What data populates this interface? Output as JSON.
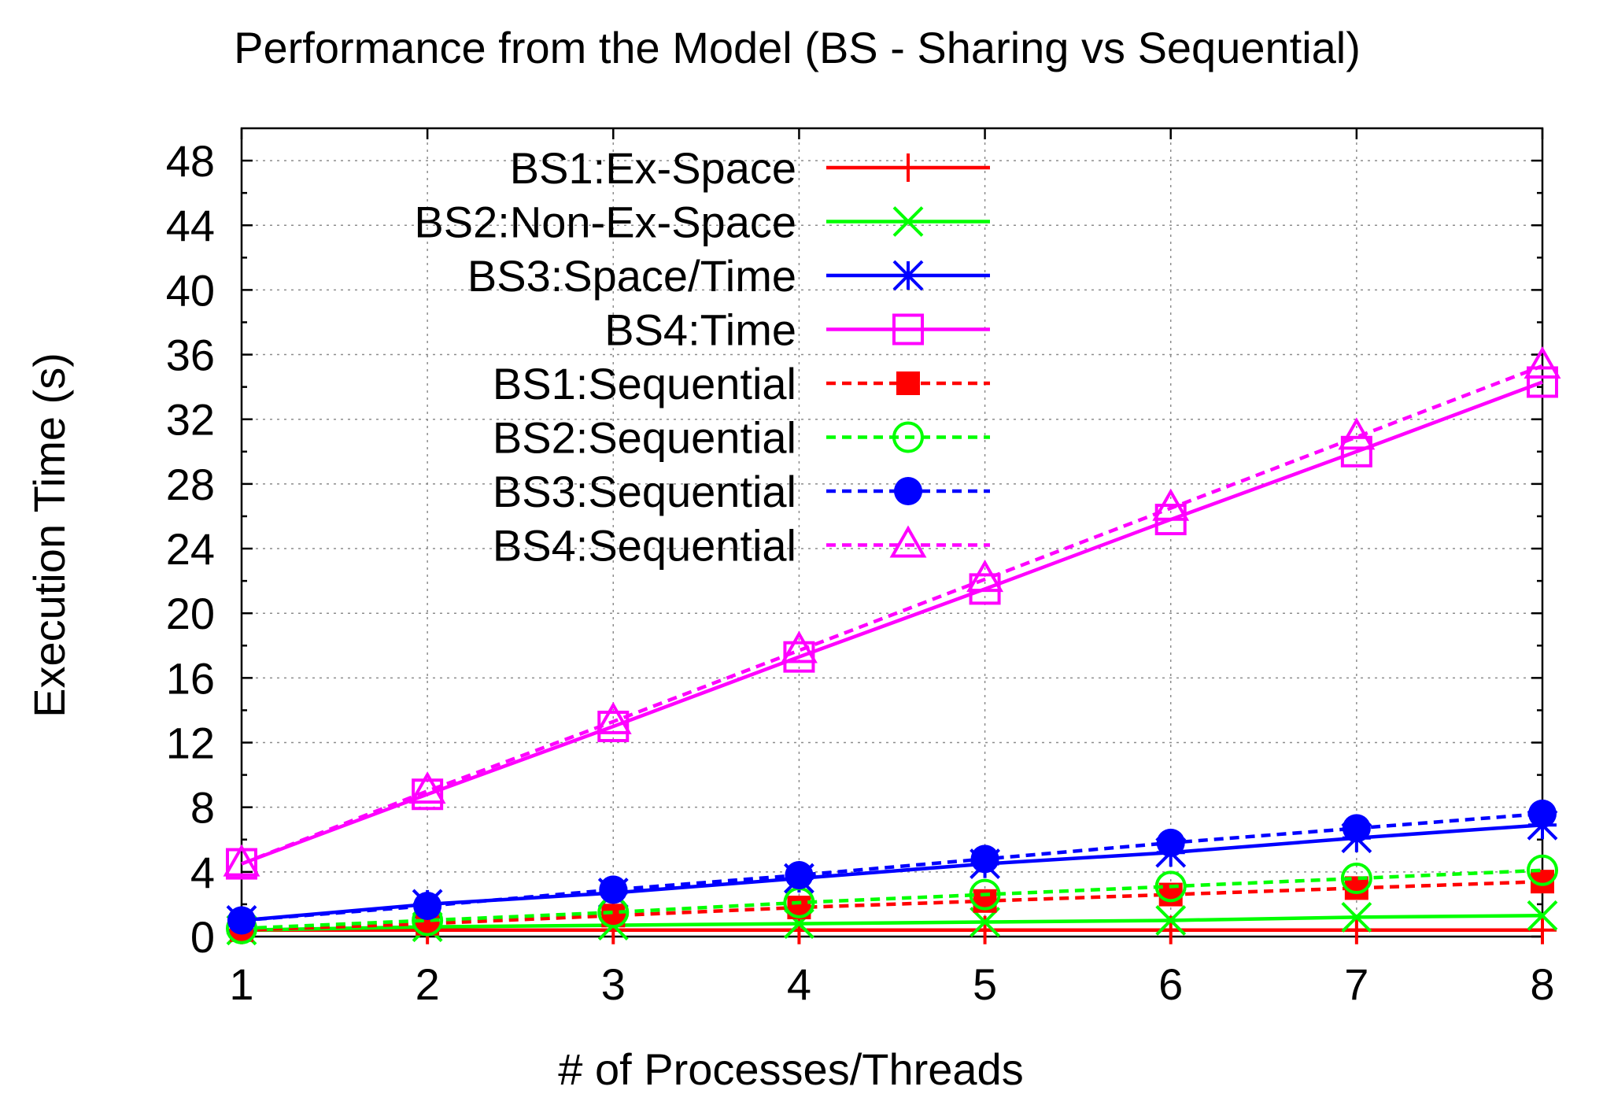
{
  "chart_data": {
    "type": "line",
    "title": "Performance from the Model (BS - Sharing vs Sequential)",
    "xlabel": "# of Processes/Threads",
    "ylabel": "Execution Time (s)",
    "x": [
      1,
      2,
      3,
      4,
      5,
      6,
      7,
      8
    ],
    "xlim": [
      1,
      8
    ],
    "ylim": [
      0,
      50
    ],
    "xticks": [
      "1",
      "2",
      "3",
      "4",
      "5",
      "6",
      "7",
      "8"
    ],
    "yticks": [
      "0",
      "4",
      "8",
      "12",
      "16",
      "20",
      "24",
      "28",
      "32",
      "36",
      "40",
      "44",
      "48"
    ],
    "grid": true,
    "legend_position": "top-left",
    "series": [
      {
        "name": "BS1:Ex-Space",
        "color": "#ff0000",
        "line": "solid",
        "marker": "plus",
        "values": [
          0.4,
          0.4,
          0.4,
          0.4,
          0.4,
          0.4,
          0.4,
          0.4
        ]
      },
      {
        "name": "BS2:Non-Ex-Space",
        "color": "#00ff00",
        "line": "solid",
        "marker": "cross",
        "values": [
          0.4,
          0.6,
          0.7,
          0.8,
          0.9,
          1.0,
          1.2,
          1.3
        ]
      },
      {
        "name": "BS3:Space/Time",
        "color": "#0000ff",
        "line": "solid",
        "marker": "star",
        "values": [
          1.0,
          2.0,
          2.7,
          3.6,
          4.5,
          5.2,
          6.1,
          6.9
        ]
      },
      {
        "name": "BS4:Time",
        "color": "#ff00ff",
        "line": "solid",
        "marker": "square-open",
        "values": [
          4.5,
          8.8,
          13.0,
          17.3,
          21.5,
          25.8,
          30.0,
          34.3
        ]
      },
      {
        "name": "BS1:Sequential",
        "color": "#ff0000",
        "line": "dashed",
        "marker": "square-filled",
        "values": [
          0.4,
          0.8,
          1.3,
          1.8,
          2.2,
          2.6,
          3.0,
          3.4
        ]
      },
      {
        "name": "BS2:Sequential",
        "color": "#00ff00",
        "line": "dashed",
        "marker": "circle-open",
        "values": [
          0.5,
          1.0,
          1.5,
          2.1,
          2.6,
          3.1,
          3.6,
          4.1
        ]
      },
      {
        "name": "BS3:Sequential",
        "color": "#0000ff",
        "line": "dashed",
        "marker": "circle-filled",
        "values": [
          1.0,
          1.9,
          2.9,
          3.8,
          4.8,
          5.8,
          6.7,
          7.6
        ]
      },
      {
        "name": "BS4:Sequential",
        "color": "#ff00ff",
        "line": "dashed",
        "marker": "triangle-open",
        "values": [
          4.5,
          9.0,
          13.3,
          17.7,
          22.1,
          26.5,
          30.9,
          35.3
        ]
      }
    ]
  }
}
